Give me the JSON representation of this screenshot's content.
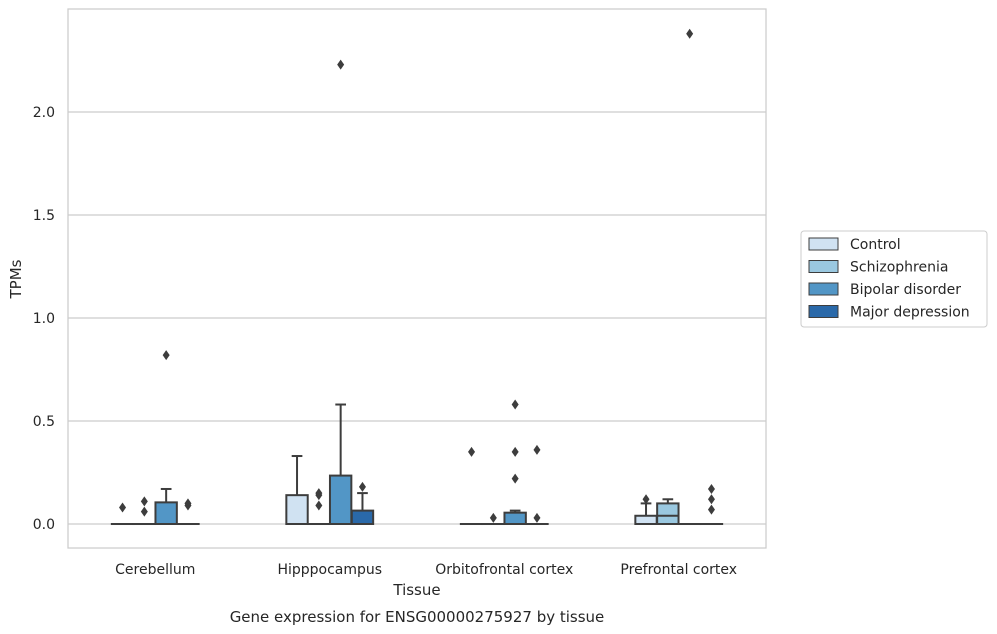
{
  "chart_data": {
    "type": "boxplot",
    "caption": "Gene expression for ENSG00000275927 by tissue",
    "xlabel": "Tissue",
    "ylabel": "TPMs",
    "ylim": [
      -0.12,
      2.52
    ],
    "yticks": [
      "0.0",
      "0.5",
      "1.0",
      "1.5",
      "2.0"
    ],
    "ytick_values": [
      0.0,
      0.5,
      1.0,
      1.5,
      2.0
    ],
    "grid": "horizontal",
    "legend_position": "right",
    "categories": [
      "Cerebellum",
      "Hipppocampus",
      "Orbitofrontal cortex",
      "Prefrontal cortex"
    ],
    "series": [
      {
        "name": "Control",
        "color": "#d0e2f2",
        "boxes": [
          {
            "q1": 0,
            "median": 0,
            "q3": 0,
            "whisker_low": 0,
            "whisker_high": 0,
            "outliers": [
              0.08
            ]
          },
          {
            "q1": 0,
            "median": 0,
            "q3": 0.14,
            "whisker_low": 0,
            "whisker_high": 0.33,
            "outliers": []
          },
          {
            "q1": 0,
            "median": 0,
            "q3": 0,
            "whisker_low": 0,
            "whisker_high": 0,
            "outliers": [
              0.35
            ]
          },
          {
            "q1": 0,
            "median": 0,
            "q3": 0.04,
            "whisker_low": 0,
            "whisker_high": 0.1,
            "outliers": [
              0.12
            ]
          }
        ]
      },
      {
        "name": "Schizophrenia",
        "color": "#9ac8e0",
        "boxes": [
          {
            "q1": 0,
            "median": 0,
            "q3": 0,
            "whisker_low": 0,
            "whisker_high": 0,
            "outliers": [
              0.06,
              0.11
            ]
          },
          {
            "q1": 0,
            "median": 0,
            "q3": 0,
            "whisker_low": 0,
            "whisker_high": 0,
            "outliers": [
              0.09,
              0.14,
              0.15
            ]
          },
          {
            "q1": 0,
            "median": 0,
            "q3": 0,
            "whisker_low": 0,
            "whisker_high": 0,
            "outliers": [
              0.03
            ]
          },
          {
            "q1": 0,
            "median": 0.04,
            "q3": 0.1,
            "whisker_low": 0,
            "whisker_high": 0.12,
            "outliers": []
          }
        ]
      },
      {
        "name": "Bipolar disorder",
        "color": "#5296c6",
        "boxes": [
          {
            "q1": 0,
            "median": 0,
            "q3": 0.105,
            "whisker_low": 0,
            "whisker_high": 0.17,
            "outliers": [
              0.82
            ]
          },
          {
            "q1": 0,
            "median": 0,
            "q3": 0.235,
            "whisker_low": 0,
            "whisker_high": 0.58,
            "outliers": [
              2.23
            ]
          },
          {
            "q1": 0,
            "median": 0,
            "q3": 0.055,
            "whisker_low": 0,
            "whisker_high": 0.065,
            "outliers": [
              0.22,
              0.35,
              0.58
            ]
          },
          {
            "q1": 0,
            "median": 0,
            "q3": 0,
            "whisker_low": 0,
            "whisker_high": 0,
            "outliers": [
              2.38
            ]
          }
        ]
      },
      {
        "name": "Major depression",
        "color": "#2a69a9",
        "boxes": [
          {
            "q1": 0,
            "median": 0,
            "q3": 0,
            "whisker_low": 0,
            "whisker_high": 0,
            "outliers": [
              0.09,
              0.1
            ]
          },
          {
            "q1": 0,
            "median": 0,
            "q3": 0.065,
            "whisker_low": 0,
            "whisker_high": 0.15,
            "outliers": [
              0.18
            ]
          },
          {
            "q1": 0,
            "median": 0,
            "q3": 0,
            "whisker_low": 0,
            "whisker_high": 0,
            "outliers": [
              0.03,
              0.36
            ]
          },
          {
            "q1": 0,
            "median": 0,
            "q3": 0,
            "whisker_low": 0,
            "whisker_high": 0,
            "outliers": [
              0.07,
              0.12,
              0.17
            ]
          }
        ]
      }
    ]
  }
}
